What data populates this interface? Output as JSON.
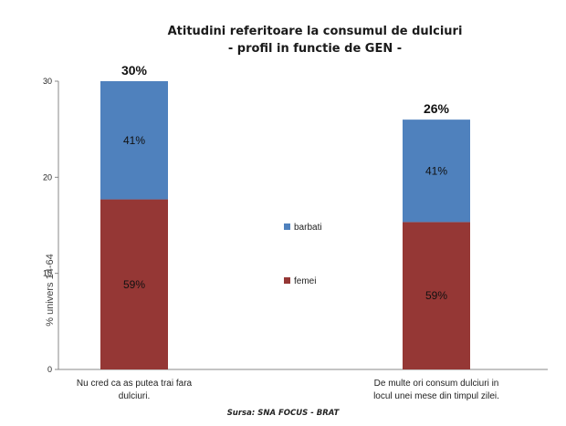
{
  "chart_data": {
    "type": "bar",
    "stacked": true,
    "title_line1": "Atitudini referitoare la consumul de dulciuri",
    "title_line2": "- profil in functie de GEN -",
    "ylabel": "% univers 14-64",
    "ylim": [
      0,
      30
    ],
    "yticks": [
      0,
      10,
      20,
      30
    ],
    "categories": [
      [
        "Nu cred ca as putea trai fara",
        "dulciuri."
      ],
      [
        "De multe ori consum dulciuri in",
        "locul unei mese din timpul zilei."
      ]
    ],
    "totals": [
      30,
      26
    ],
    "total_labels": [
      "30%",
      "26%"
    ],
    "series": [
      {
        "name": "femei",
        "color": "#953735",
        "values": [
          17.7,
          15.34
        ],
        "labels": [
          "59%",
          "59%"
        ]
      },
      {
        "name": "barbati",
        "color": "#4F81BD",
        "values": [
          12.3,
          10.66
        ],
        "labels": [
          "41%",
          "41%"
        ]
      }
    ],
    "legend_position": "center",
    "grid": false
  },
  "source": "Sursa: SNA FOCUS - BRAT"
}
